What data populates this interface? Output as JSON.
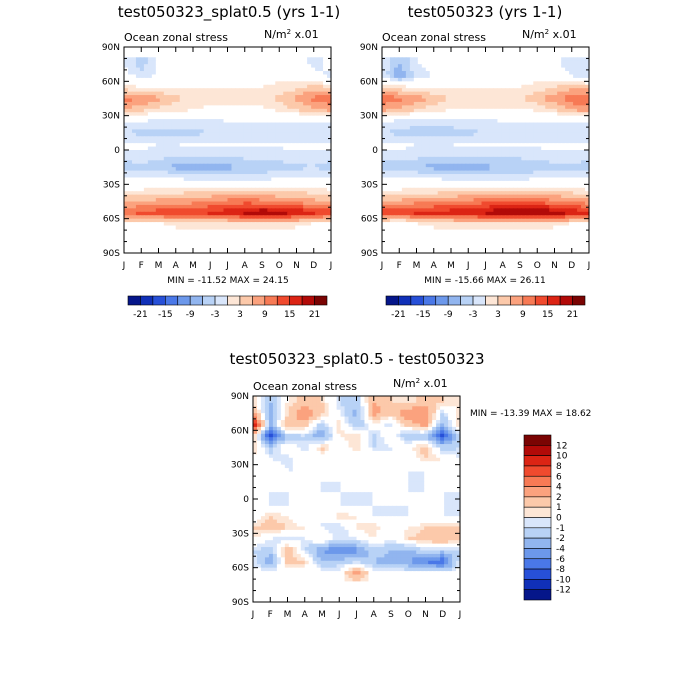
{
  "chart_data": [
    {
      "type": "heatmap",
      "title": "test050323_splat0.5 (yrs 1-1)",
      "subtitle_left": "Ocean zonal stress",
      "units": "N/m",
      "units_sup": "2",
      "units_scale": " x.01",
      "x_ticks": [
        "J",
        "F",
        "M",
        "A",
        "M",
        "J",
        "J",
        "A",
        "S",
        "O",
        "N",
        "D",
        "J"
      ],
      "y_ticks": [
        "90N",
        "60N",
        "30N",
        "0",
        "30S",
        "60S",
        "90S"
      ],
      "ylim": [
        -90,
        90
      ],
      "stats": "MIN = -11.52 MAX =  24.15",
      "colorbar_levels": [
        -21,
        -18,
        -15,
        -12,
        -9,
        -6,
        -3,
        0,
        3,
        6,
        9,
        12,
        15,
        18,
        21
      ],
      "colorbar_labels": [
        "-21",
        "-15",
        "-9",
        "-3",
        "3",
        "9",
        "15",
        "21"
      ],
      "field": {
        "lat": [
          75,
          65,
          55,
          45,
          35,
          25,
          15,
          5,
          -5,
          -15,
          -25,
          -35,
          -45,
          -55,
          -65
        ],
        "rows": [
          [
            -3,
            -8,
            -2,
            -1,
            -1,
            1,
            2,
            1,
            -1,
            -2,
            -1,
            -4,
            -2
          ],
          [
            -2,
            -4,
            -3,
            -2,
            1,
            2,
            2,
            1,
            1,
            2,
            1,
            -2,
            -4
          ],
          [
            4,
            3,
            2,
            2,
            3,
            3,
            3,
            3,
            3,
            4,
            5,
            7,
            6
          ],
          [
            13,
            12,
            10,
            7,
            5,
            5,
            6,
            5,
            5,
            7,
            10,
            13,
            14
          ],
          [
            9,
            7,
            5,
            4,
            3,
            2,
            2,
            2,
            2,
            4,
            6,
            8,
            10
          ],
          [
            -3,
            -3,
            -4,
            -4,
            -4,
            -4,
            -3,
            -3,
            -3,
            -3,
            -3,
            -3,
            -3
          ],
          [
            -6,
            -7,
            -7,
            -7,
            -7,
            -6,
            -6,
            -6,
            -6,
            -6,
            -6,
            -6,
            -6
          ],
          [
            -2,
            -2,
            -3,
            -3,
            -2,
            -2,
            -2,
            -2,
            -2,
            -2,
            -2,
            -2,
            -2
          ],
          [
            -4,
            -4,
            -5,
            -6,
            -6,
            -6,
            -5,
            -5,
            -5,
            -5,
            -4,
            -4,
            -4
          ],
          [
            -8,
            -7,
            -8,
            -10,
            -11,
            -11,
            -10,
            -9,
            -8,
            -7,
            -7,
            -6,
            -8
          ],
          [
            -2,
            -2,
            -2,
            -3,
            -4,
            -4,
            -4,
            -4,
            -4,
            -3,
            -2,
            -2,
            -2
          ],
          [
            3,
            3,
            4,
            4,
            5,
            5,
            6,
            6,
            6,
            5,
            5,
            4,
            3
          ],
          [
            9,
            9,
            10,
            10,
            11,
            12,
            13,
            14,
            13,
            12,
            11,
            10,
            9
          ],
          [
            15,
            16,
            17,
            18,
            18,
            19,
            20,
            22,
            24,
            23,
            21,
            19,
            17
          ],
          [
            1,
            2,
            2,
            3,
            3,
            3,
            3,
            3,
            3,
            3,
            3,
            2,
            1
          ]
        ]
      }
    },
    {
      "type": "heatmap",
      "title": "test050323 (yrs 1-1)",
      "subtitle_left": "Ocean zonal stress",
      "units": "N/m",
      "units_sup": "2",
      "units_scale": " x.01",
      "x_ticks": [
        "J",
        "F",
        "M",
        "A",
        "M",
        "J",
        "J",
        "A",
        "S",
        "O",
        "N",
        "D",
        "J"
      ],
      "y_ticks": [
        "90N",
        "60N",
        "30N",
        "0",
        "30S",
        "60S",
        "90S"
      ],
      "ylim": [
        -90,
        90
      ],
      "stats": "MIN = -15.66 MAX =  26.11",
      "colorbar_levels": [
        -21,
        -18,
        -15,
        -12,
        -9,
        -6,
        -3,
        0,
        3,
        6,
        9,
        12,
        15,
        18,
        21
      ],
      "colorbar_labels": [
        "-21",
        "-15",
        "-9",
        "-3",
        "3",
        "9",
        "15",
        "21"
      ],
      "field": {
        "lat": [
          75,
          65,
          55,
          45,
          35,
          25,
          15,
          5,
          -5,
          -15,
          -25,
          -35,
          -45,
          -55,
          -65
        ],
        "rows": [
          [
            -4,
            -9,
            -3,
            -2,
            -1,
            1,
            2,
            1,
            -1,
            -3,
            -2,
            -5,
            -3
          ],
          [
            -3,
            -12,
            -5,
            -3,
            1,
            2,
            2,
            1,
            1,
            2,
            1,
            -3,
            -6
          ],
          [
            5,
            4,
            3,
            3,
            3,
            3,
            3,
            3,
            3,
            4,
            6,
            8,
            7
          ],
          [
            14,
            13,
            11,
            8,
            6,
            6,
            6,
            6,
            6,
            8,
            11,
            14,
            15
          ],
          [
            10,
            8,
            6,
            4,
            3,
            2,
            2,
            2,
            2,
            4,
            6,
            9,
            11
          ],
          [
            -3,
            -4,
            -4,
            -5,
            -5,
            -4,
            -4,
            -3,
            -3,
            -3,
            -3,
            -3,
            -3
          ],
          [
            -6,
            -7,
            -8,
            -8,
            -7,
            -7,
            -6,
            -6,
            -6,
            -6,
            -6,
            -6,
            -6
          ],
          [
            -2,
            -2,
            -3,
            -3,
            -3,
            -2,
            -2,
            -2,
            -2,
            -2,
            -2,
            -2,
            -2
          ],
          [
            -4,
            -4,
            -5,
            -6,
            -6,
            -6,
            -5,
            -5,
            -5,
            -5,
            -4,
            -4,
            -4
          ],
          [
            -8,
            -8,
            -9,
            -10,
            -11,
            -11,
            -10,
            -9,
            -9,
            -8,
            -7,
            -7,
            -8
          ],
          [
            -2,
            -2,
            -2,
            -3,
            -4,
            -4,
            -4,
            -4,
            -4,
            -3,
            -2,
            -2,
            -2
          ],
          [
            3,
            3,
            4,
            4,
            5,
            5,
            6,
            6,
            6,
            5,
            5,
            4,
            3
          ],
          [
            10,
            10,
            11,
            11,
            12,
            13,
            14,
            15,
            15,
            14,
            13,
            12,
            10
          ],
          [
            17,
            18,
            19,
            20,
            20,
            21,
            22,
            24,
            26,
            25,
            23,
            21,
            19
          ],
          [
            2,
            -3,
            2,
            3,
            3,
            3,
            3,
            3,
            3,
            3,
            3,
            2,
            2
          ]
        ]
      }
    },
    {
      "type": "heatmap",
      "title": "test050323_splat0.5 - test050323",
      "subtitle_left": "Ocean zonal stress",
      "units": "N/m",
      "units_sup": "2",
      "units_scale": " x.01",
      "x_ticks": [
        "J",
        "F",
        "M",
        "A",
        "M",
        "J",
        "J",
        "A",
        "S",
        "O",
        "N",
        "D",
        "J"
      ],
      "y_ticks": [
        "90N",
        "60N",
        "30N",
        "0",
        "30S",
        "60S",
        "90S"
      ],
      "ylim": [
        -90,
        90
      ],
      "stats": "MIN = -13.39 MAX =  18.62",
      "colorbar_levels": [
        -12,
        -10,
        -8,
        -6,
        -4,
        -2,
        -1,
        0,
        1,
        2,
        4,
        6,
        8,
        10,
        12
      ],
      "colorbar_labels": [
        "12",
        "10",
        "8",
        "6",
        "4",
        "2",
        "1",
        "0",
        "-1",
        "-2",
        "-4",
        "-6",
        "-8",
        "-10",
        "-12"
      ],
      "field": {
        "lat": [
          85,
          75,
          65,
          55,
          45,
          35,
          25,
          15,
          5,
          -5,
          -15,
          -25,
          -35,
          -45,
          -55,
          -65,
          -75
        ],
        "rows": [
          [
            2,
            -4,
            1,
            3,
            2,
            -2,
            -3,
            4,
            2,
            1,
            3,
            2,
            1
          ],
          [
            5,
            -6,
            2,
            6,
            3,
            -1,
            -5,
            5,
            3,
            6,
            6,
            -2,
            2
          ],
          [
            13,
            -4,
            4,
            3,
            -3,
            2,
            -4,
            1,
            -2,
            3,
            5,
            -5,
            3
          ],
          [
            3,
            -12,
            -3,
            -2,
            -6,
            1,
            2,
            -3,
            1,
            -4,
            -4,
            -11,
            -3
          ],
          [
            2,
            -3,
            1,
            -2,
            3,
            -1,
            2,
            -2,
            -1,
            1,
            3,
            -3,
            -2
          ],
          [
            1,
            -1,
            -2,
            1,
            -1,
            1,
            -1,
            1,
            -1,
            -1,
            2,
            1,
            -1
          ],
          [
            -1,
            1,
            -1,
            -1,
            1,
            -1,
            -1,
            -1,
            1,
            -1,
            -1,
            -1,
            1
          ],
          [
            -1,
            -1,
            1,
            -1,
            -1,
            -1,
            1,
            -1,
            -1,
            -1,
            -1,
            1,
            -1
          ],
          [
            1,
            -1,
            -1,
            1,
            -1,
            -1,
            -1,
            -1,
            1,
            -1,
            -1,
            -1,
            -1
          ],
          [
            -1,
            -1,
            -1,
            -1,
            1,
            -1,
            -1,
            -1,
            -1,
            -1,
            1,
            -1,
            -1
          ],
          [
            -1,
            2,
            1,
            -1,
            -1,
            2,
            1,
            -1,
            -1,
            -1,
            -1,
            -1,
            -1
          ],
          [
            2,
            3,
            2,
            1,
            -1,
            -2,
            1,
            2,
            -1,
            1,
            2,
            3,
            2
          ],
          [
            1,
            -1,
            -2,
            -1,
            1,
            -2,
            -1,
            1,
            -1,
            2,
            3,
            4,
            2
          ],
          [
            -2,
            -3,
            4,
            -2,
            -6,
            -8,
            -7,
            -3,
            -4,
            -5,
            -2,
            -3,
            -2
          ],
          [
            -1,
            -6,
            3,
            2,
            -4,
            -3,
            -2,
            -4,
            -5,
            -6,
            -8,
            -10,
            -1
          ],
          [
            0,
            0,
            0,
            0,
            0,
            0,
            6,
            0,
            0,
            0,
            0,
            0,
            0
          ],
          [
            0,
            0,
            0,
            0,
            0,
            0,
            0,
            0,
            0,
            0,
            0,
            0,
            0
          ]
        ]
      }
    }
  ],
  "colors": {
    "positive": [
      "#fde6d6",
      "#fcc9aa",
      "#fba27e",
      "#f77a55",
      "#f04a2e",
      "#dc2414",
      "#b20a08",
      "#7a0403"
    ],
    "negative": [
      "#d9e6fb",
      "#b8d2f6",
      "#91b5ef",
      "#6c98eb",
      "#4a78e8",
      "#2750d8",
      "#1030b8",
      "#05168a"
    ]
  }
}
